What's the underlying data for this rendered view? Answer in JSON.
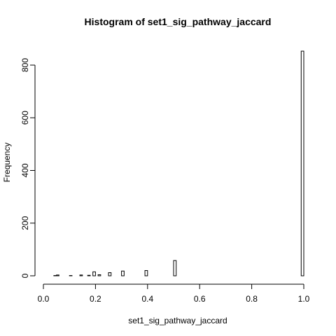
{
  "chart_data": {
    "type": "bar",
    "title": "Histogram of set1_sig_pathway_jaccard",
    "xlabel": "set1_sig_pathway_jaccard",
    "ylabel": "Frequency",
    "xlim": [
      0,
      1
    ],
    "ylim": [
      0,
      850
    ],
    "xticks": [
      "0.0",
      "0.2",
      "0.4",
      "0.6",
      "0.8",
      "1.0"
    ],
    "xtick_values": [
      0,
      0.2,
      0.4,
      0.6,
      0.8,
      1.0
    ],
    "yticks": [
      "0",
      "200",
      "400",
      "600",
      "800"
    ],
    "ytick_values": [
      0,
      200,
      400,
      600,
      800
    ],
    "bin_width": 0.01,
    "bins_start": 0.04,
    "bins_end": 1.0,
    "counts": [
      1,
      3,
      0,
      0,
      0,
      0,
      1,
      0,
      0,
      0,
      3,
      0,
      0,
      2,
      0,
      15,
      0,
      4,
      0,
      0,
      0,
      12,
      0,
      0,
      0,
      0,
      18,
      0,
      0,
      0,
      0,
      0,
      0,
      0,
      0,
      20,
      0,
      0,
      0,
      0,
      0,
      0,
      0,
      0,
      0,
      0,
      58,
      0,
      0,
      0,
      0,
      0,
      0,
      0,
      0,
      0,
      0,
      0,
      0,
      0,
      0,
      0,
      0,
      0,
      0,
      0,
      0,
      0,
      0,
      0,
      0,
      0,
      0,
      0,
      0,
      0,
      0,
      0,
      0,
      0,
      0,
      0,
      0,
      0,
      0,
      0,
      0,
      0,
      0,
      0,
      0,
      0,
      0,
      0,
      0,
      853
    ],
    "grid": false,
    "legend": "none",
    "bar_fill": "#ffffff",
    "bar_stroke": "#000000"
  }
}
